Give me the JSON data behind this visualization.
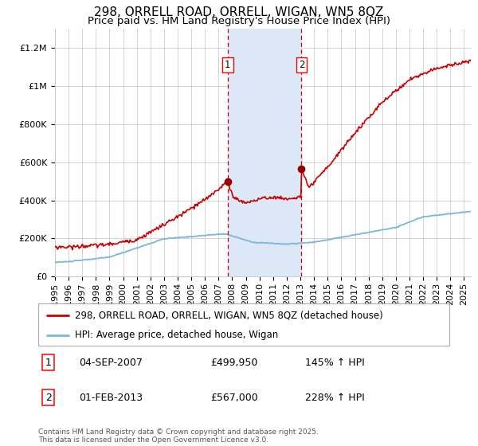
{
  "title": "298, ORRELL ROAD, ORRELL, WIGAN, WN5 8QZ",
  "subtitle": "Price paid vs. HM Land Registry's House Price Index (HPI)",
  "ylim": [
    0,
    1300000
  ],
  "xlim_start": 1995.0,
  "xlim_end": 2025.5,
  "yticks": [
    0,
    200000,
    400000,
    600000,
    800000,
    1000000,
    1200000
  ],
  "ytick_labels": [
    "£0",
    "£200K",
    "£400K",
    "£600K",
    "£800K",
    "£1M",
    "£1.2M"
  ],
  "xtick_years": [
    1995,
    1996,
    1997,
    1998,
    1999,
    2000,
    2001,
    2002,
    2003,
    2004,
    2005,
    2006,
    2007,
    2008,
    2009,
    2010,
    2011,
    2012,
    2013,
    2014,
    2015,
    2016,
    2017,
    2018,
    2019,
    2020,
    2021,
    2022,
    2023,
    2024,
    2025
  ],
  "sale1_date": 2007.67,
  "sale1_price": 499950,
  "sale1_label": "1",
  "sale1_hpi_pct": "145%",
  "sale1_date_str": "04-SEP-2007",
  "sale1_price_str": "£499,950",
  "sale2_date": 2013.08,
  "sale2_price": 567000,
  "sale2_label": "2",
  "sale2_hpi_pct": "228%",
  "sale2_date_str": "01-FEB-2013",
  "sale2_price_str": "£567,000",
  "hpi_line_color": "#7bb8d8",
  "price_line_color": "#cc0000",
  "sale_marker_color": "#990000",
  "vline_color": "#cc0000",
  "shade_color": "#dce8f5",
  "grid_color": "#cccccc",
  "background_color": "#ffffff",
  "legend_label_red": "298, ORRELL ROAD, ORRELL, WIGAN, WN5 8QZ (detached house)",
  "legend_label_blue": "HPI: Average price, detached house, Wigan",
  "footer": "Contains HM Land Registry data © Crown copyright and database right 2025.\nThis data is licensed under the Open Government Licence v3.0.",
  "title_fontsize": 11,
  "subtitle_fontsize": 9.5,
  "tick_fontsize": 8,
  "legend_fontsize": 8.5
}
